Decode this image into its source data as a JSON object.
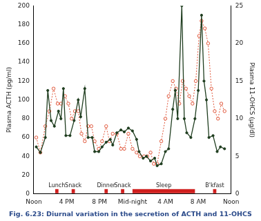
{
  "chart_data": {
    "type": "line",
    "title": "Fig. 6.23: Diurnal variation in the secretion of ACTH and 11-OHCS",
    "y_label": "Plasma ACTH (pg/ml)",
    "y2_label": "Plasma 11-OHCS (µg/dl)",
    "xlim": [
      0,
      24
    ],
    "xticks": [
      {
        "value": 0,
        "label": "Noon"
      },
      {
        "value": 4,
        "label": "4 PM"
      },
      {
        "value": 8,
        "label": "8 PM"
      },
      {
        "value": 12,
        "label": "Mid-night"
      },
      {
        "value": 16,
        "label": "4 AM"
      },
      {
        "value": 20,
        "label": "8 AM"
      },
      {
        "value": 24,
        "label": "Noon"
      }
    ],
    "ylim": [
      0,
      200
    ],
    "yticks": [
      0,
      20,
      40,
      60,
      80,
      100,
      120,
      140,
      160,
      180,
      200
    ],
    "y2lim": [
      0,
      25
    ],
    "y2ticks": [
      0,
      5,
      10,
      15,
      20,
      25
    ],
    "grid": false,
    "series": [
      {
        "name": "Plasma ACTH (pg/ml)",
        "color": "#1f3d1f",
        "marker": "circle",
        "line_style": "solid",
        "x": [
          0.3,
          0.8,
          1.4,
          1.7,
          2.1,
          2.5,
          3.0,
          3.3,
          3.6,
          3.9,
          4.4,
          4.9,
          5.4,
          5.7,
          6.2,
          6.6,
          7.1,
          7.4,
          7.9,
          8.3,
          8.8,
          9.3,
          9.6,
          10.1,
          10.6,
          11.0,
          11.5,
          12.0,
          12.5,
          12.8,
          13.3,
          13.7,
          14.2,
          14.7,
          15.0,
          15.5,
          16.0,
          16.4,
          16.9,
          17.2,
          17.5,
          18.0,
          18.3,
          18.6,
          19.1,
          19.6,
          20.0,
          20.4,
          20.7,
          21.0,
          21.3,
          21.8,
          22.3,
          22.7,
          23.2
        ],
        "values": [
          50,
          44,
          60,
          110,
          78,
          72,
          88,
          80,
          112,
          62,
          62,
          78,
          100,
          82,
          112,
          60,
          60,
          45,
          45,
          50,
          55,
          58,
          52,
          65,
          68,
          66,
          70,
          67,
          58,
          45,
          38,
          40,
          35,
          38,
          30,
          32,
          45,
          48,
          90,
          110,
          80,
          200,
          80,
          65,
          60,
          80,
          110,
          190,
          120,
          100,
          60,
          62,
          45,
          50,
          48
        ]
      },
      {
        "name": "Plasma 11-OHCS (µg/dl)",
        "color": "#e0563a",
        "marker": "open circle",
        "line_style": "dotted",
        "axis": "y2",
        "x": [
          0.3,
          0.8,
          1.4,
          1.9,
          2.4,
          2.9,
          3.3,
          3.8,
          4.2,
          4.6,
          5.0,
          5.4,
          5.8,
          6.2,
          6.6,
          7.0,
          7.4,
          7.9,
          8.3,
          8.8,
          9.2,
          9.6,
          10.1,
          10.6,
          11.0,
          11.5,
          12.0,
          12.5,
          12.9,
          13.4,
          13.8,
          14.2,
          14.6,
          15.0,
          15.5,
          16.0,
          16.4,
          16.9,
          17.3,
          17.7,
          18.1,
          18.5,
          18.9,
          19.3,
          19.7,
          20.1,
          20.4,
          20.8,
          21.2,
          21.6,
          22.0,
          22.4,
          22.8,
          23.2
        ],
        "values": [
          7.5,
          5.5,
          9,
          11,
          14,
          12,
          12,
          13,
          12,
          10,
          11,
          11,
          8,
          7,
          9,
          9,
          7,
          6,
          7,
          9,
          7,
          8,
          8,
          6,
          6,
          8,
          6,
          5.5,
          5,
          5,
          5,
          5.5,
          4,
          4,
          7,
          10,
          13,
          15,
          14,
          12,
          15,
          14,
          13,
          12,
          15,
          21,
          23,
          22,
          20,
          14,
          11,
          10,
          12,
          11
        ]
      }
    ],
    "events": [
      {
        "label": "Lunch",
        "start": 2.6,
        "end": 3.0
      },
      {
        "label": "Snack",
        "start": 4.6,
        "end": 5.0
      },
      {
        "label": "Dinner",
        "start": 8.6,
        "end": 9.0
      },
      {
        "label": "Snack",
        "start": 10.6,
        "end": 11.0
      },
      {
        "label": "Sleep",
        "start": 12.0,
        "end": 19.6
      },
      {
        "label": "B'kfast",
        "start": 21.8,
        "end": 22.2
      }
    ],
    "legend": false
  }
}
